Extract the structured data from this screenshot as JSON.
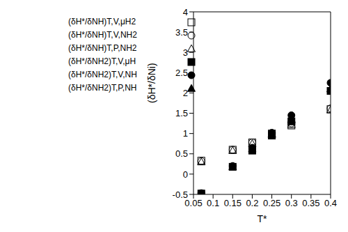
{
  "chart_data": {
    "type": "scatter",
    "x_label": "T*",
    "y_label": "(δH*/δNi)",
    "x": [
      0.07,
      0.15,
      0.2,
      0.25,
      0.3,
      0.4
    ],
    "xlim": [
      0.05,
      0.4
    ],
    "xticks": [
      0.05,
      0.1,
      0.15,
      0.2,
      0.25,
      0.3,
      0.35,
      0.4
    ],
    "ylim": [
      -0.5,
      4
    ],
    "yticks": [
      -0.5,
      0,
      0.5,
      1,
      1.5,
      2,
      2.5,
      3,
      3.5,
      4
    ],
    "grid": false,
    "legend": "upper left",
    "series": [
      {
        "name": "(δH*/δNH)T,V,μH2",
        "color": "#000000",
        "marker": "open_square",
        "values": [
          0.33,
          0.6,
          0.78,
          1.0,
          1.2,
          1.6
        ]
      },
      {
        "name": "(δH*/δNH)T,V,NH2",
        "color": "#000000",
        "marker": "open_circle",
        "values": [
          0.32,
          0.6,
          0.78,
          1.0,
          1.25,
          1.62
        ]
      },
      {
        "name": "(δH*/δNH)T,P,NH2",
        "color": "#000000",
        "marker": "open_triangle",
        "values": [
          0.3,
          0.58,
          0.75,
          0.98,
          1.22,
          1.58
        ]
      },
      {
        "name": "(δH*/δNH2)T,V,μH",
        "color": "#000000",
        "marker": "filled_square",
        "values": [
          -0.48,
          0.18,
          0.58,
          0.95,
          1.3,
          2.05
        ]
      },
      {
        "name": "(δH*/δNH2)T,V,NH",
        "color": "#000000",
        "marker": "filled_circle",
        "values": [
          -0.47,
          0.2,
          0.65,
          1.02,
          1.45,
          2.25
        ]
      },
      {
        "name": "(δH*/δNH2)T,P,NH",
        "color": "#000000",
        "marker": "filled_triangle",
        "values": [
          -0.48,
          0.18,
          0.62,
          0.98,
          1.35,
          2.1
        ]
      }
    ]
  }
}
